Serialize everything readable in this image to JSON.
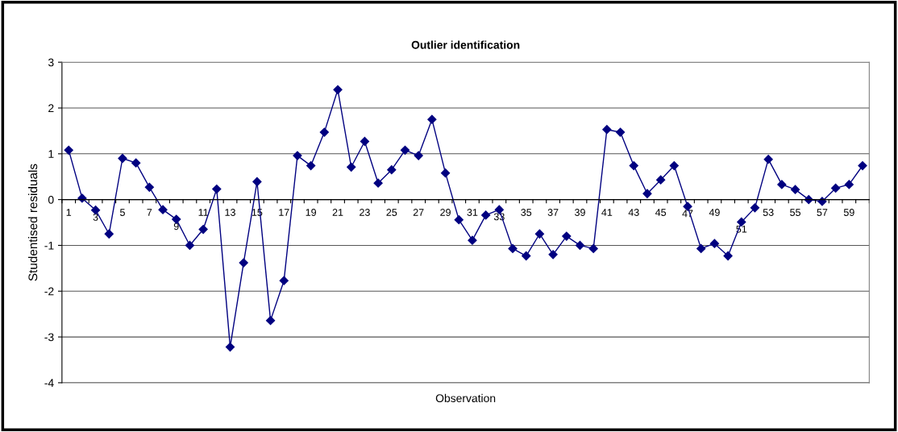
{
  "chart_data": {
    "type": "line",
    "title": "Outlier identification",
    "xlabel": "Observation",
    "ylabel": "Studentised residuals",
    "categories": [
      "1",
      null,
      "3",
      null,
      "5",
      null,
      "7",
      null,
      "9",
      null,
      "11",
      null,
      "13",
      null,
      "15",
      null,
      "17",
      null,
      "19",
      null,
      "21",
      null,
      "23",
      null,
      "25",
      null,
      "27",
      null,
      "29",
      null,
      "31",
      null,
      "33",
      null,
      "35",
      null,
      "37",
      null,
      "39",
      null,
      "41",
      null,
      "43",
      null,
      "45",
      null,
      "47",
      null,
      "49",
      null,
      "51",
      null,
      "53",
      null,
      "55",
      null,
      "57",
      null,
      "59",
      null
    ],
    "series": [
      {
        "color": "#000080",
        "values": [
          1.08,
          0.03,
          -0.23,
          -0.75,
          0.9,
          0.8,
          0.27,
          -0.22,
          -0.43,
          -1.0,
          -0.65,
          0.23,
          -3.22,
          -1.38,
          0.39,
          -2.64,
          -1.77,
          0.96,
          0.74,
          1.47,
          2.4,
          0.71,
          1.27,
          0.36,
          0.65,
          1.08,
          0.96,
          1.75,
          0.58,
          -0.44,
          -0.89,
          -0.34,
          -0.22,
          -1.07,
          -1.23,
          -0.75,
          -1.2,
          -0.8,
          -1.0,
          -1.07,
          1.53,
          1.47,
          0.74,
          0.13,
          0.43,
          0.74,
          -0.15,
          -1.07,
          -0.96,
          -1.23,
          -0.49,
          -0.18,
          0.88,
          0.33,
          0.22,
          0.0,
          -0.04,
          0.25,
          0.33,
          0.74
        ]
      }
    ],
    "ylim": [
      -4,
      3
    ],
    "yticks": [
      -4,
      -3,
      -2,
      -1,
      0,
      1,
      2,
      3
    ],
    "grid": "y",
    "marker": "diamond",
    "line_style": "solid"
  }
}
